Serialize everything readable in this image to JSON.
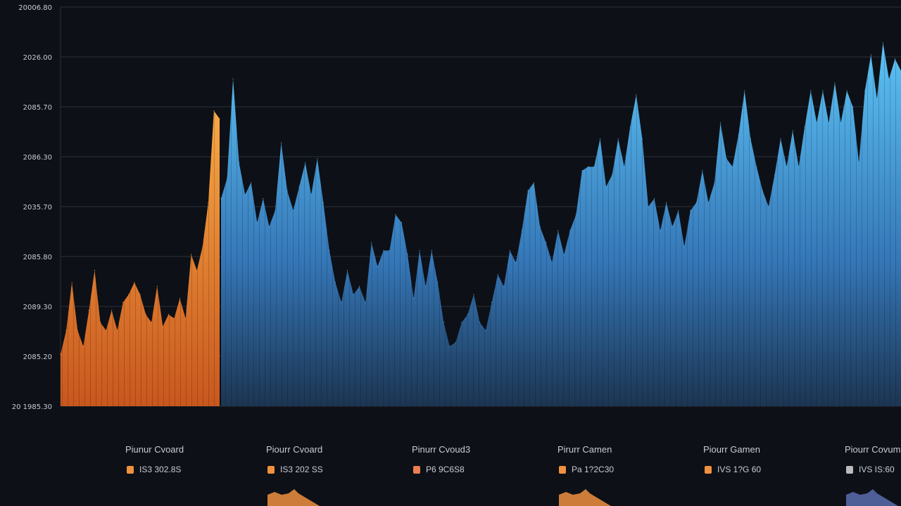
{
  "chart_data": {
    "type": "area",
    "title": "",
    "xlabel": "",
    "ylabel": "",
    "grid": true,
    "ylim": [
      0,
      100
    ],
    "y_tick_labels": [
      "20006.80",
      "2026.00",
      "2085.70",
      "2086.30",
      "2035.70",
      "2085.80",
      "2089.30",
      "2085.20",
      "20 1985.30"
    ],
    "series": [
      {
        "color": "#f29a3a",
        "values": [
          13,
          19,
          31,
          19,
          15,
          24,
          34,
          21,
          19,
          24,
          19,
          26,
          28,
          31,
          28,
          23,
          21,
          30,
          20,
          23,
          22,
          27,
          22,
          38,
          34,
          40,
          51,
          74,
          72
        ]
      },
      {
        "color": "#4fb3ee",
        "values": [
          52,
          57,
          82,
          61,
          53,
          56,
          46,
          52,
          45,
          49,
          66,
          54,
          49,
          55,
          61,
          53,
          62,
          51,
          39,
          31,
          26,
          34,
          28,
          30,
          26,
          41,
          35,
          39,
          39,
          48,
          46,
          38,
          27,
          39,
          30,
          39,
          31,
          21,
          15,
          16,
          21,
          23,
          28,
          21,
          19,
          26,
          33,
          30,
          39,
          36,
          44,
          54,
          56,
          45,
          41,
          36,
          44,
          38,
          44,
          48,
          59,
          60,
          60,
          67,
          55,
          58,
          67,
          60,
          70,
          78,
          67,
          50,
          52,
          44,
          51,
          45,
          49,
          40,
          49,
          51,
          59,
          51,
          56,
          71,
          62,
          60,
          68,
          79,
          67,
          60,
          54,
          50,
          58,
          67,
          60,
          69,
          60,
          70,
          79,
          71,
          79,
          71,
          81,
          71,
          79,
          75,
          61,
          79,
          88,
          77,
          91,
          82,
          87,
          84
        ]
      }
    ]
  },
  "legend": [
    {
      "title": "Piunur Cvoard",
      "value": "IS3 302.8S",
      "color": "#f0913f",
      "spark": false
    },
    {
      "title": "Piourr Cvoard",
      "value": "IS3 202 SS",
      "color": "#f0913f",
      "spark": true,
      "spark_color": "#f0913f"
    },
    {
      "title": "Pinurr Cvoud3",
      "value": "P6 9C6S8",
      "color": "#e87f4f",
      "spark": false
    },
    {
      "title": "Pirurr Camen",
      "value": "Pa 1?2C30",
      "color": "#f0913f",
      "spark": true,
      "spark_color": "#f0913f"
    },
    {
      "title": "Piourr Gamen",
      "value": "IVS 1?G 60",
      "color": "#f0913f",
      "spark": false
    },
    {
      "title": "Piourr Covum",
      "value": "IVS IS:60",
      "color": "#bbbbbb",
      "spark": true,
      "spark_color": "#5a6cae"
    }
  ]
}
